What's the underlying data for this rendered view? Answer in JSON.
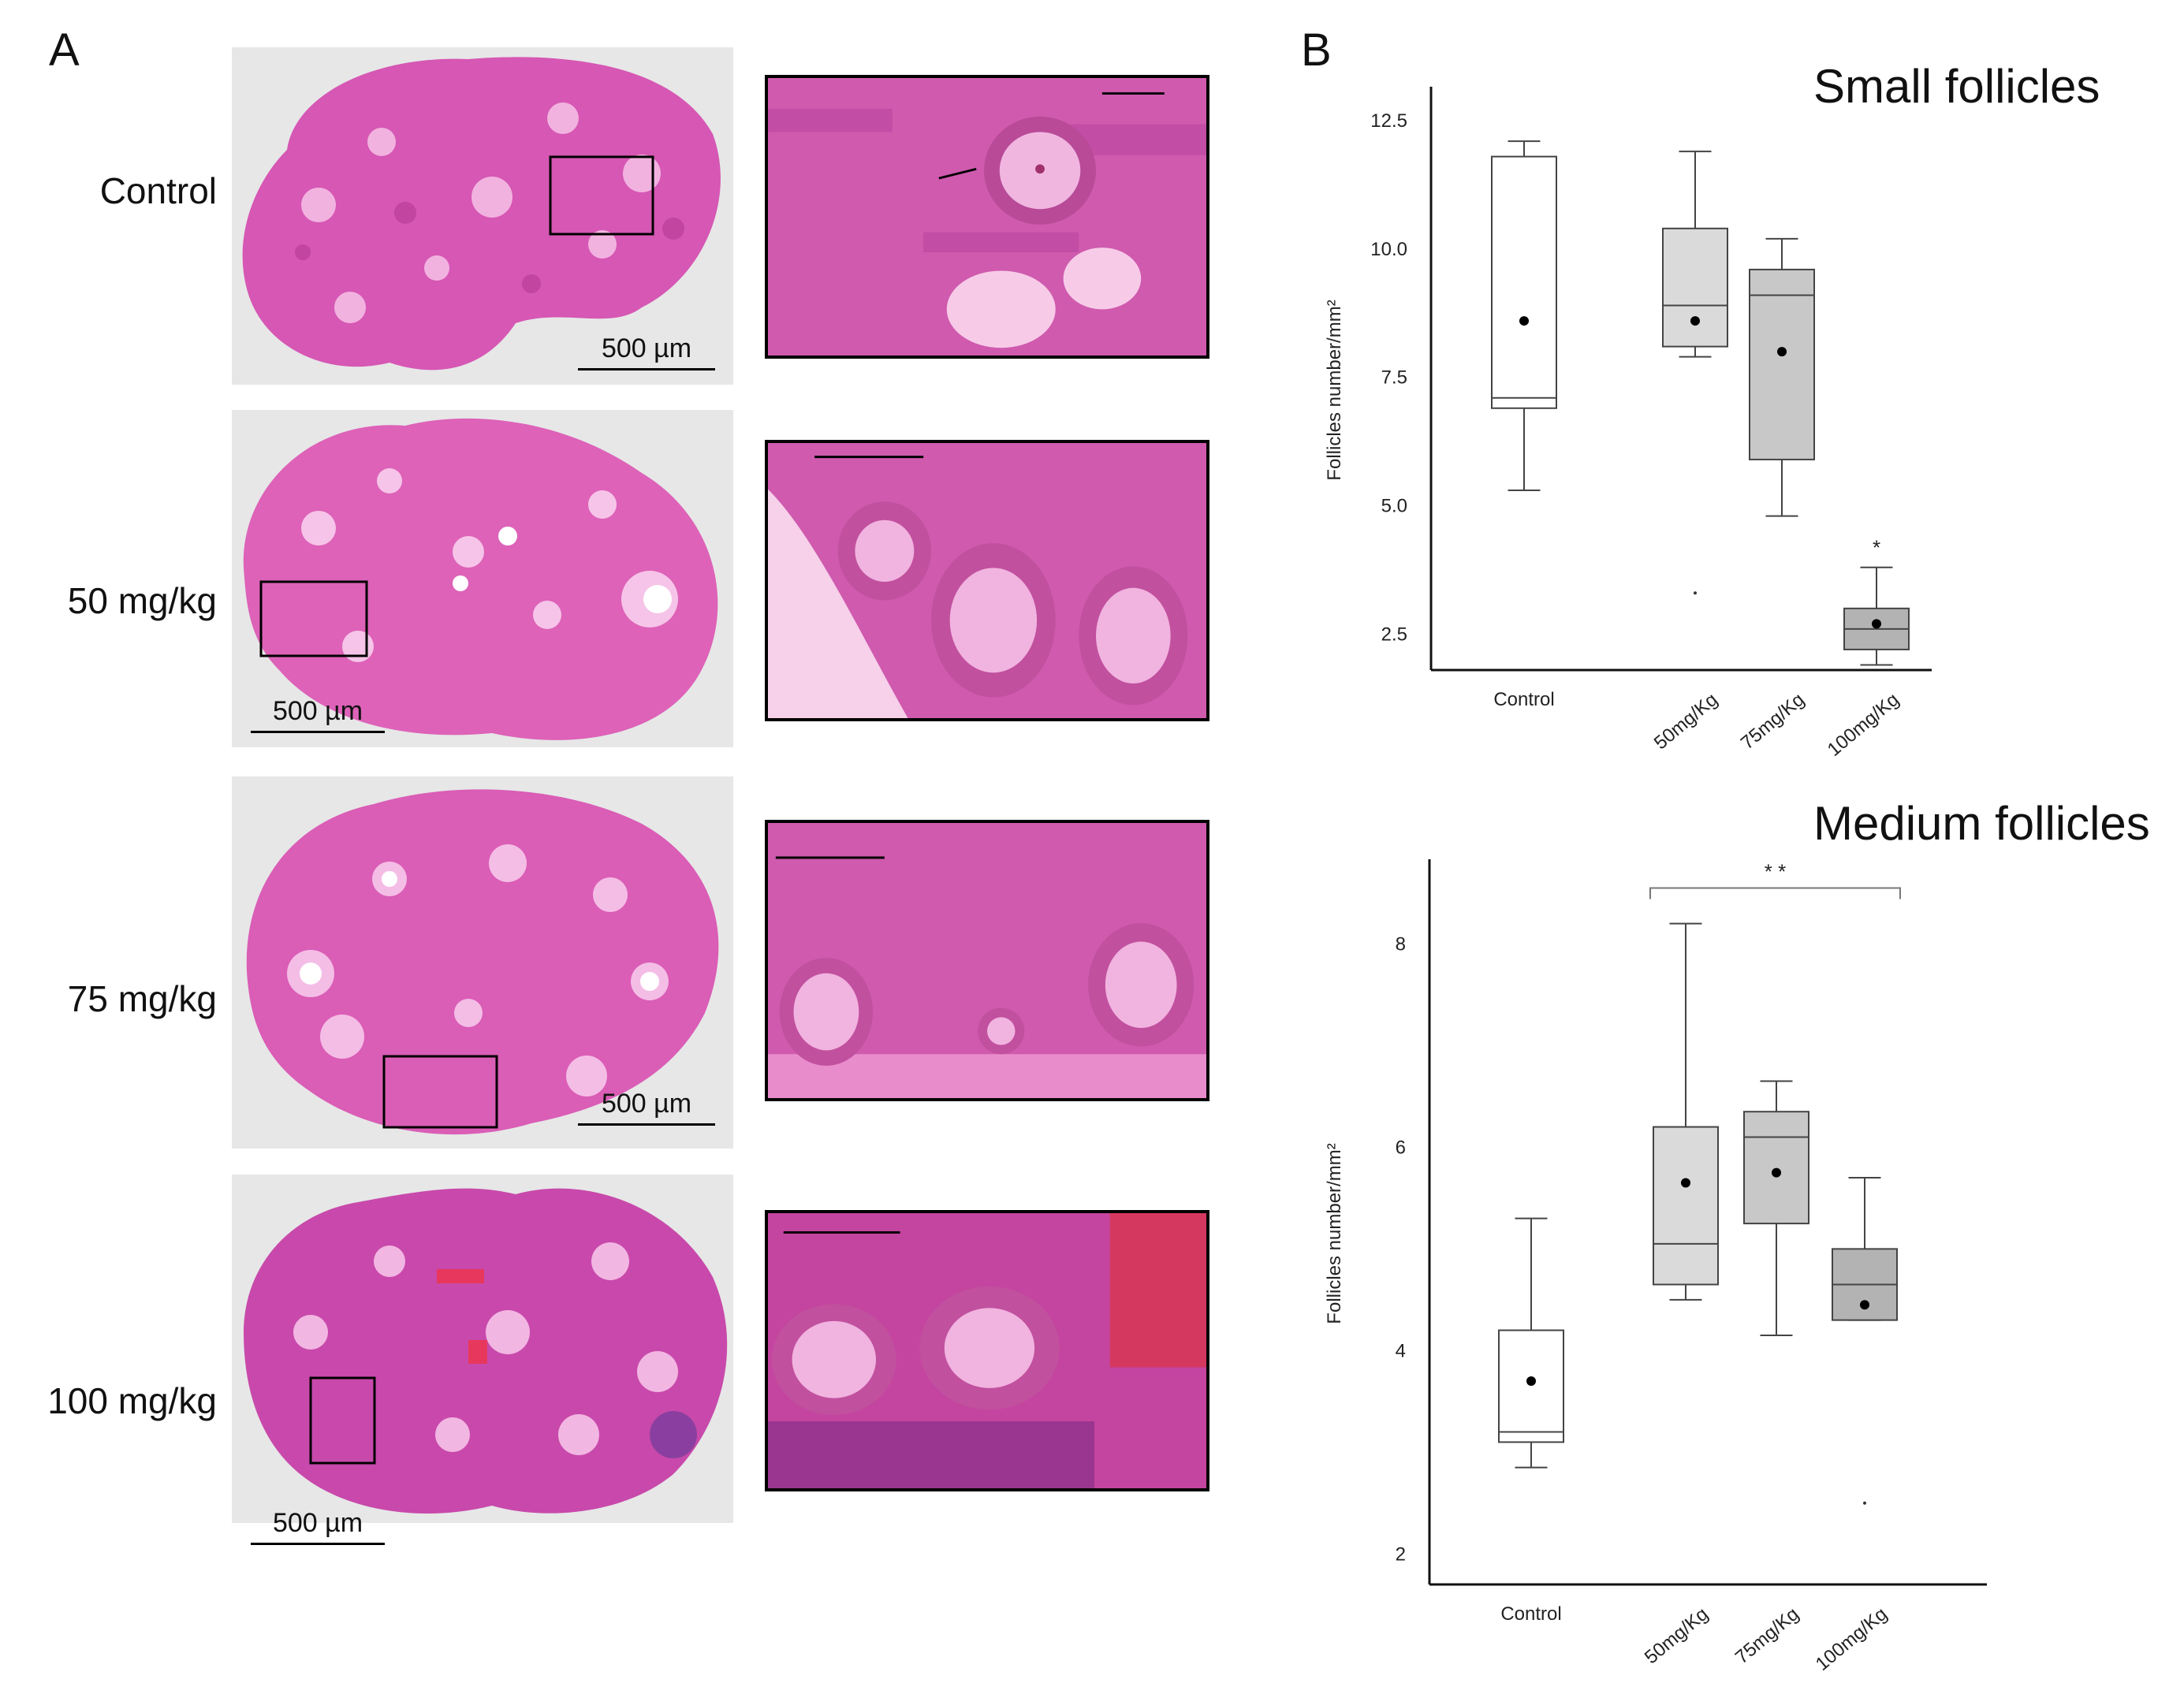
{
  "panel_a": {
    "letter": "A",
    "rows": [
      {
        "label": "Control",
        "scale": "500 µm"
      },
      {
        "label": "50 mg/kg",
        "scale": "500 µm"
      },
      {
        "label": "75 mg/kg",
        "scale": "500 µm"
      },
      {
        "label": "100 mg/kg",
        "scale": "500 µm"
      }
    ]
  },
  "panel_b": {
    "letter": "B"
  },
  "chart_data": [
    {
      "type": "box",
      "title": "Small follicles",
      "ylabel": "Follicles number/mm²",
      "ylim": [
        1.8,
        12.7
      ],
      "yticks": [
        "2.5",
        "5.0",
        "7.5",
        "10.0",
        "12.5"
      ],
      "categories": [
        "Control",
        "50mg/Kg",
        "75mg/Kg",
        "100mg/Kg"
      ],
      "fill_colors": [
        "#ffffff",
        "#dadada",
        "#c8c8c8",
        "#b3b3b3"
      ],
      "boxes": [
        {
          "min": 5.3,
          "q1": 6.9,
          "median": 7.1,
          "q3": 11.8,
          "max": 12.1,
          "mean": 8.6,
          "outliers": []
        },
        {
          "min": 7.9,
          "q1": 8.1,
          "median": 8.9,
          "q3": 10.4,
          "max": 11.9,
          "mean": 8.6,
          "outliers": [
            3.3
          ]
        },
        {
          "min": 4.8,
          "q1": 5.9,
          "median": 9.1,
          "q3": 9.6,
          "max": 10.2,
          "mean": 8.0,
          "outliers": []
        },
        {
          "min": 1.9,
          "q1": 2.2,
          "median": 2.6,
          "q3": 3.0,
          "max": 3.8,
          "mean": 2.7,
          "outliers": []
        }
      ],
      "annotations": [
        {
          "text": "*",
          "category": "100mg/Kg",
          "y": 4.2
        }
      ]
    },
    {
      "type": "box",
      "title": "Medium follicles",
      "ylabel": "Follicles number/mm²",
      "ylim": [
        1.7,
        8.6
      ],
      "yticks": [
        "2",
        "4",
        "6",
        "8"
      ],
      "categories": [
        "Control",
        "50mg/Kg",
        "75mg/Kg",
        "100mg/Kg"
      ],
      "fill_colors": [
        "#ffffff",
        "#dadada",
        "#c8c8c8",
        "#b3b3b3"
      ],
      "boxes": [
        {
          "min": 2.85,
          "q1": 3.1,
          "median": 3.2,
          "q3": 4.2,
          "max": 5.3,
          "mean": 3.7,
          "outliers": []
        },
        {
          "min": 4.5,
          "q1": 4.65,
          "median": 5.05,
          "q3": 6.2,
          "max": 8.2,
          "mean": 5.65,
          "outliers": []
        },
        {
          "min": 4.15,
          "q1": 5.25,
          "median": 6.1,
          "q3": 6.35,
          "max": 6.65,
          "mean": 5.75,
          "outliers": []
        },
        {
          "min": 4.3,
          "q1": 4.3,
          "median": 4.65,
          "q3": 5.0,
          "max": 5.7,
          "mean": 4.45,
          "outliers": [
            2.5
          ]
        }
      ],
      "bracket": {
        "text": "* *",
        "from": "50mg/Kg",
        "to": "100mg/Kg",
        "y": 8.55
      }
    }
  ]
}
